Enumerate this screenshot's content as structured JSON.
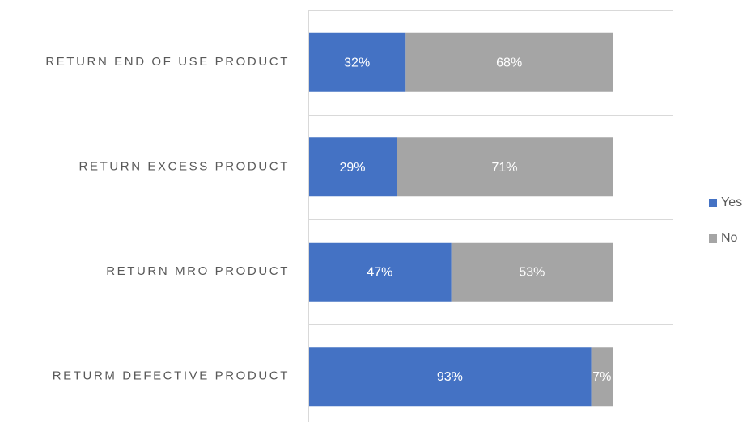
{
  "chart_data": {
    "type": "stacked-bar-horizontal",
    "categories": [
      "RETURN END OF USE PRODUCT",
      "RETURN EXCESS PRODUCT",
      "RETURN MRO PRODUCT",
      "RETURM DEFECTIVE PRODUCT"
    ],
    "series": [
      {
        "name": "Yes",
        "color": "#4472c4",
        "values": [
          32,
          29,
          47,
          93
        ],
        "value_labels": [
          "32%",
          "29%",
          "47%",
          "93%"
        ]
      },
      {
        "name": "No",
        "color": "#a5a5a5",
        "values": [
          68,
          71,
          53,
          7
        ],
        "value_labels": [
          "68%",
          "71%",
          "53%",
          "7%"
        ]
      }
    ],
    "legend": "right"
  }
}
